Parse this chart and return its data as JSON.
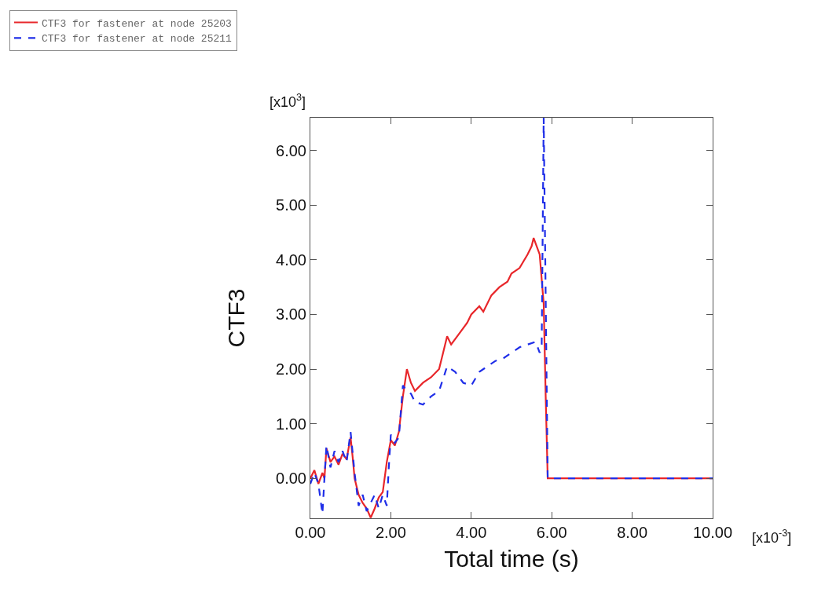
{
  "chart_data": {
    "type": "line",
    "xlabel": "Total time (s)",
    "ylabel": "CTF3",
    "annotations": [
      "[x10$^{3}$]",
      "[x10$^{-3}$]"
    ],
    "xlim": [
      0,
      10
    ],
    "xticks": [
      {
        "value": 0,
        "label": "0.00"
      },
      {
        "value": 2,
        "label": "2.00"
      },
      {
        "value": 4,
        "label": "4.00"
      },
      {
        "value": 6,
        "label": "6.00"
      },
      {
        "value": 8,
        "label": "8.00"
      },
      {
        "value": 10,
        "label": "10.00"
      }
    ],
    "ylim": [
      -0.73,
      6.6
    ],
    "yticks": [
      {
        "value": 0,
        "label": "0.00"
      },
      {
        "value": 1,
        "label": "1.00"
      },
      {
        "value": 2,
        "label": "2.00"
      },
      {
        "value": 3,
        "label": "3.00"
      },
      {
        "value": 4,
        "label": "4.00"
      },
      {
        "value": 5,
        "label": "5.00"
      },
      {
        "value": 6,
        "label": "6.00"
      }
    ],
    "grid": false,
    "legend": "top left",
    "marker": "none",
    "series": [
      {
        "name": "CTF3 for fastener at node 25203",
        "color": "#e8262a",
        "line_style": "solid",
        "x": [
          0,
          0.1,
          0.2,
          0.3,
          0.35,
          0.4,
          0.5,
          0.6,
          0.7,
          0.8,
          0.9,
          1.0,
          1.05,
          1.1,
          1.2,
          1.3,
          1.4,
          1.5,
          1.6,
          1.7,
          1.8,
          1.9,
          2.0,
          2.1,
          2.2,
          2.3,
          2.4,
          2.5,
          2.6,
          2.8,
          3.0,
          3.2,
          3.3,
          3.4,
          3.5,
          3.7,
          3.9,
          4.0,
          4.2,
          4.3,
          4.5,
          4.7,
          4.9,
          5.0,
          5.2,
          5.4,
          5.5,
          5.55,
          5.7,
          5.8,
          5.85,
          5.9,
          10
        ],
        "values": [
          0,
          0.15,
          -0.1,
          0.1,
          0,
          0.55,
          0.3,
          0.4,
          0.25,
          0.45,
          0.35,
          0.75,
          0.4,
          0,
          -0.3,
          -0.45,
          -0.55,
          -0.72,
          -0.55,
          -0.35,
          -0.25,
          0.3,
          0.7,
          0.6,
          0.85,
          1.5,
          2.0,
          1.75,
          1.6,
          1.75,
          1.85,
          2.0,
          2.3,
          2.6,
          2.45,
          2.65,
          2.85,
          3.0,
          3.15,
          3.05,
          3.35,
          3.5,
          3.6,
          3.75,
          3.85,
          4.1,
          4.25,
          4.4,
          4.1,
          3.2,
          1.5,
          0,
          0
        ]
      },
      {
        "name": "CTF3 for fastener at node 25211",
        "color": "#1f2ee8",
        "line_style": "dashed",
        "x": [
          0,
          0.1,
          0.2,
          0.3,
          0.35,
          0.4,
          0.5,
          0.6,
          0.7,
          0.8,
          0.9,
          1.0,
          1.1,
          1.2,
          1.3,
          1.4,
          1.5,
          1.6,
          1.7,
          1.8,
          1.9,
          1.95,
          2.0,
          2.1,
          2.2,
          2.3,
          2.4,
          2.5,
          2.6,
          2.8,
          3.0,
          3.2,
          3.4,
          3.6,
          3.8,
          4.0,
          4.2,
          4.4,
          4.6,
          4.8,
          5.0,
          5.2,
          5.4,
          5.6,
          5.7,
          5.75,
          5.8,
          5.9,
          10
        ],
        "values": [
          -0.1,
          0.1,
          -0.1,
          -0.65,
          0,
          0.6,
          0.2,
          0.5,
          0.3,
          0.5,
          0.3,
          0.85,
          0.1,
          -0.5,
          -0.3,
          -0.6,
          -0.45,
          -0.3,
          -0.55,
          -0.3,
          -0.5,
          0.2,
          0.8,
          0.65,
          0.75,
          1.7,
          1.6,
          1.55,
          1.4,
          1.35,
          1.5,
          1.6,
          2.05,
          1.95,
          1.75,
          1.7,
          1.95,
          2.05,
          2.15,
          2.2,
          2.3,
          2.4,
          2.45,
          2.5,
          2.3,
          2.4,
          6.6,
          0,
          0
        ]
      }
    ]
  }
}
